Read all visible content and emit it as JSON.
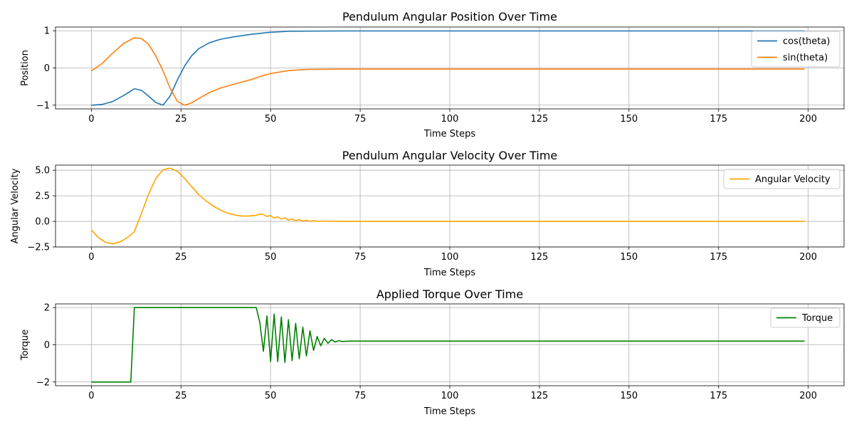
{
  "chart_data": [
    {
      "type": "line",
      "title": "Pendulum Angular Position Over Time",
      "xlabel": "Time Steps",
      "ylabel": "Position",
      "xlim": [
        -10,
        210
      ],
      "ylim": [
        -1.1,
        1.1
      ],
      "xticks": [
        0,
        25,
        50,
        75,
        100,
        125,
        150,
        175,
        200
      ],
      "yticks": [
        -1,
        0,
        1
      ],
      "ytick_labels": [
        "−1",
        "0",
        "1"
      ],
      "grid": true,
      "legend_position": "top-right",
      "series": [
        {
          "name": "cos(theta)",
          "color": "#1f77b4",
          "points": [
            [
              0,
              -1.0
            ],
            [
              3,
              -0.98
            ],
            [
              6,
              -0.9
            ],
            [
              9,
              -0.74
            ],
            [
              12,
              -0.56
            ],
            [
              14,
              -0.6
            ],
            [
              16,
              -0.76
            ],
            [
              18,
              -0.93
            ],
            [
              20,
              -1.0
            ],
            [
              22,
              -0.75
            ],
            [
              24,
              -0.32
            ],
            [
              26,
              0.05
            ],
            [
              28,
              0.33
            ],
            [
              30,
              0.52
            ],
            [
              33,
              0.68
            ],
            [
              36,
              0.77
            ],
            [
              40,
              0.84
            ],
            [
              45,
              0.91
            ],
            [
              50,
              0.96
            ],
            [
              55,
              0.985
            ],
            [
              60,
              0.99
            ],
            [
              70,
              0.995
            ],
            [
              80,
              0.995
            ],
            [
              199,
              0.995
            ]
          ]
        },
        {
          "name": "sin(theta)",
          "color": "#ff7f0e",
          "points": [
            [
              0,
              -0.08
            ],
            [
              3,
              0.12
            ],
            [
              6,
              0.4
            ],
            [
              9,
              0.66
            ],
            [
              12,
              0.81
            ],
            [
              14,
              0.79
            ],
            [
              16,
              0.63
            ],
            [
              18,
              0.32
            ],
            [
              20,
              -0.08
            ],
            [
              22,
              -0.55
            ],
            [
              24,
              -0.9
            ],
            [
              26,
              -1.0
            ],
            [
              28,
              -0.94
            ],
            [
              30,
              -0.82
            ],
            [
              33,
              -0.66
            ],
            [
              36,
              -0.54
            ],
            [
              40,
              -0.43
            ],
            [
              45,
              -0.3
            ],
            [
              48,
              -0.2
            ],
            [
              50,
              -0.15
            ],
            [
              55,
              -0.07
            ],
            [
              60,
              -0.04
            ],
            [
              70,
              -0.03
            ],
            [
              199,
              -0.03
            ]
          ]
        }
      ]
    },
    {
      "type": "line",
      "title": "Pendulum Angular Velocity Over Time",
      "xlabel": "Time Steps",
      "ylabel": "Angular Velocity",
      "xlim": [
        -10,
        210
      ],
      "ylim": [
        -2.5,
        5.5
      ],
      "xticks": [
        0,
        25,
        50,
        75,
        100,
        125,
        150,
        175,
        200
      ],
      "yticks": [
        -2.5,
        0.0,
        2.5,
        5.0
      ],
      "ytick_labels": [
        "−2.5",
        "0.0",
        "2.5",
        "5.0"
      ],
      "grid": true,
      "legend_position": "top-right",
      "series": [
        {
          "name": "Angular Velocity",
          "color": "#ffa500",
          "points": [
            [
              0,
              -0.85
            ],
            [
              2,
              -1.6
            ],
            [
              4,
              -2.05
            ],
            [
              6,
              -2.2
            ],
            [
              8,
              -2.0
            ],
            [
              10,
              -1.6
            ],
            [
              12,
              -1.0
            ],
            [
              14,
              0.8
            ],
            [
              16,
              2.7
            ],
            [
              18,
              4.2
            ],
            [
              20,
              5.05
            ],
            [
              22,
              5.2
            ],
            [
              24,
              4.9
            ],
            [
              26,
              4.2
            ],
            [
              28,
              3.4
            ],
            [
              30,
              2.6
            ],
            [
              32,
              2.0
            ],
            [
              34,
              1.5
            ],
            [
              36,
              1.1
            ],
            [
              38,
              0.8
            ],
            [
              40,
              0.62
            ],
            [
              42,
              0.52
            ],
            [
              44,
              0.52
            ],
            [
              46,
              0.6
            ],
            [
              47,
              0.7
            ],
            [
              48,
              0.68
            ],
            [
              49,
              0.48
            ],
            [
              50,
              0.58
            ],
            [
              51,
              0.32
            ],
            [
              52,
              0.45
            ],
            [
              53,
              0.22
            ],
            [
              54,
              0.34
            ],
            [
              55,
              0.12
            ],
            [
              56,
              0.24
            ],
            [
              57,
              0.05
            ],
            [
              58,
              0.18
            ],
            [
              59,
              0.02
            ],
            [
              60,
              0.12
            ],
            [
              61,
              0.0
            ],
            [
              62,
              0.08
            ],
            [
              63,
              0.01
            ],
            [
              65,
              0.03
            ],
            [
              68,
              0.0
            ],
            [
              75,
              0.0
            ],
            [
              199,
              0.0
            ]
          ]
        }
      ]
    },
    {
      "type": "line",
      "title": "Applied Torque Over Time",
      "xlabel": "Time Steps",
      "ylabel": "Torque",
      "xlim": [
        -10,
        210
      ],
      "ylim": [
        -2.2,
        2.2
      ],
      "xticks": [
        0,
        25,
        50,
        75,
        100,
        125,
        150,
        175,
        200
      ],
      "yticks": [
        -2,
        0,
        2
      ],
      "ytick_labels": [
        "−2",
        "0",
        "2"
      ],
      "grid": true,
      "legend_position": "top-right",
      "series": [
        {
          "name": "Torque",
          "color": "#008000",
          "points": [
            [
              0,
              -2.0
            ],
            [
              11,
              -2.0
            ],
            [
              12,
              2.0
            ],
            [
              46,
              2.0
            ],
            [
              47,
              1.2
            ],
            [
              48,
              -0.35
            ],
            [
              49,
              1.55
            ],
            [
              50,
              -0.9
            ],
            [
              51,
              1.65
            ],
            [
              52,
              -0.9
            ],
            [
              53,
              1.5
            ],
            [
              54,
              -0.95
            ],
            [
              55,
              1.35
            ],
            [
              56,
              -0.85
            ],
            [
              57,
              1.15
            ],
            [
              58,
              -0.75
            ],
            [
              59,
              0.95
            ],
            [
              60,
              -0.6
            ],
            [
              61,
              0.75
            ],
            [
              62,
              -0.3
            ],
            [
              63,
              0.45
            ],
            [
              64,
              -0.05
            ],
            [
              65,
              0.35
            ],
            [
              66,
              0.08
            ],
            [
              67,
              0.28
            ],
            [
              68,
              0.15
            ],
            [
              69,
              0.22
            ],
            [
              70,
              0.18
            ],
            [
              72,
              0.2
            ],
            [
              75,
              0.2
            ],
            [
              199,
              0.2
            ]
          ]
        }
      ]
    }
  ]
}
